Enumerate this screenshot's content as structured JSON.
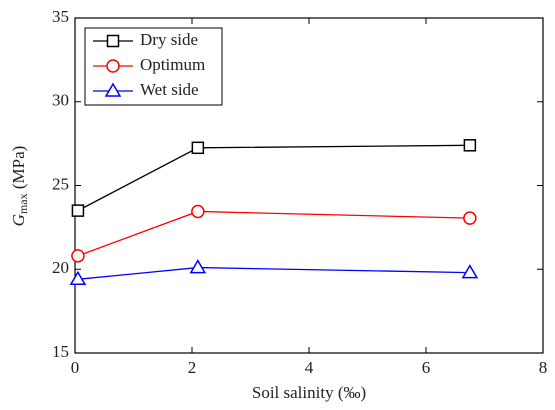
{
  "chart_data": {
    "type": "line",
    "x": [
      0.05,
      2.1,
      6.75
    ],
    "series": [
      {
        "name": "Dry side",
        "color": "#000000",
        "marker": "square",
        "values": [
          23.5,
          27.25,
          27.4
        ]
      },
      {
        "name": "Optimum",
        "color": "#ff0000",
        "marker": "circle",
        "values": [
          20.8,
          23.45,
          23.05
        ]
      },
      {
        "name": "Wet side",
        "color": "#0000ff",
        "marker": "triangle",
        "values": [
          19.4,
          20.1,
          19.8
        ]
      }
    ],
    "xlabel": "Soil salinity (‰)",
    "ylabel": [
      "G",
      "max",
      " (MPa)"
    ],
    "xlim": [
      0,
      8
    ],
    "xticks": [
      0,
      2,
      4,
      6,
      8
    ],
    "ylim": [
      15,
      35
    ],
    "yticks": [
      15,
      20,
      25,
      30,
      35
    ],
    "legend": "upper-left"
  }
}
